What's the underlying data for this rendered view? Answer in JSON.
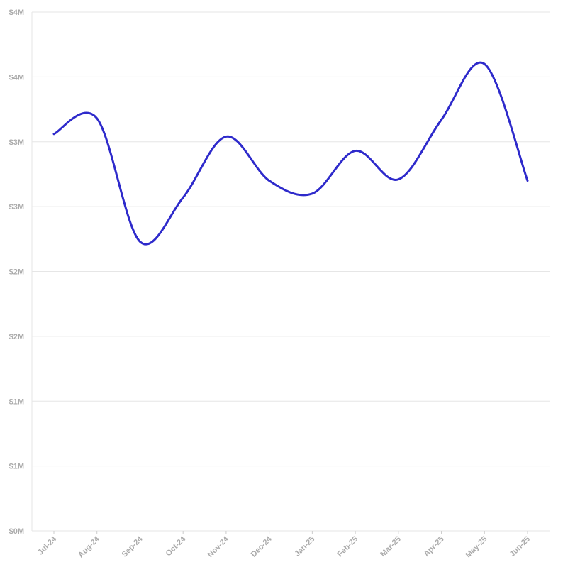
{
  "chart_data": {
    "type": "line",
    "x": [
      "Jul-24",
      "Aug-24",
      "Sep-24",
      "Oct-24",
      "Nov-24",
      "Dec-24",
      "Jan-25",
      "Feb-25",
      "Mar-25",
      "Apr-25",
      "May-25",
      "Jun-25"
    ],
    "series": [
      {
        "values": [
          3.06,
          3.18,
          2.23,
          2.57,
          3.04,
          2.7,
          2.6,
          2.93,
          2.71,
          3.17,
          3.6,
          2.7
        ],
        "color": "#2e2acb"
      }
    ],
    "y_ticks": [
      0,
      0.5,
      1.0,
      1.5,
      2.0,
      2.5,
      3.0,
      3.5,
      4.0
    ],
    "y_tick_labels": [
      "$0M",
      "$1M",
      "$1M",
      "$2M",
      "$2M",
      "$3M",
      "$3M",
      "$4M",
      "$4M"
    ],
    "ylim": [
      0,
      4.0
    ],
    "grid": true,
    "legend": "none"
  }
}
